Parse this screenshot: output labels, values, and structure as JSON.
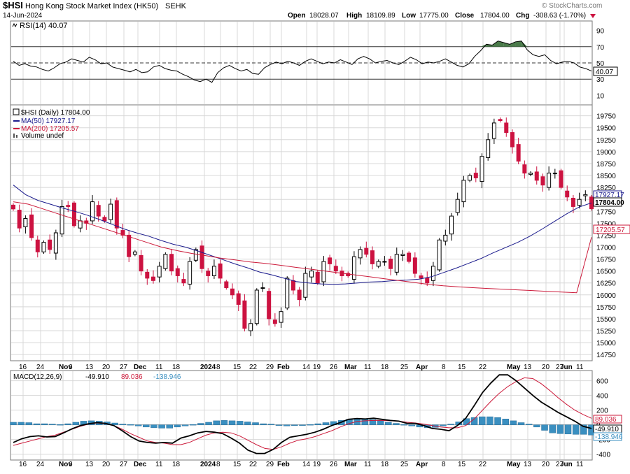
{
  "header": {
    "ticker": "$HSI",
    "name": "Hong Kong Stock Market Index (HK50)",
    "exchange": "SEHK",
    "date": "14-Jun-2024",
    "watermark": "© StockCharts.com",
    "quote": {
      "open_label": "Open",
      "open": "18028.07",
      "high_label": "High",
      "high": "18109.89",
      "low_label": "Low",
      "low": "17775.00",
      "close_label": "Close",
      "close": "17804.00",
      "chg_label": "Chg",
      "chg": "-308.63 (-1.70%)"
    }
  },
  "colors": {
    "up": "#000000",
    "down": "#cc1240",
    "ma50": "#1a1a8c",
    "ma200": "#cc1a3a",
    "rsi_fill": "#4a7a4a",
    "volume": "#3a8fc0",
    "grid": "#d8d8d8",
    "axis": "#000000"
  },
  "rsi_panel": {
    "label": "RSI(14) 40.07",
    "current_tag": "40.07",
    "ticks": [
      "90",
      "70",
      "50",
      "30",
      "10"
    ]
  },
  "price_panel": {
    "legend": [
      "$HSI (Daily) 17804.00",
      "MA(50) 17927.17",
      "MA(200) 17205.57",
      "Volume undef"
    ],
    "tags": {
      "ma50": "17927.17",
      "close": "17804.00",
      "ma200": "17205.57"
    },
    "ticks": [
      "19750",
      "19500",
      "19250",
      "19000",
      "18750",
      "18500",
      "18250",
      "18000",
      "17750",
      "17500",
      "17250",
      "17000",
      "16750",
      "16500",
      "16250",
      "16000",
      "15750",
      "15500",
      "15250",
      "15000",
      "14750"
    ]
  },
  "macd_panel": {
    "label_prefix": "MACD(12,26,9)",
    "macd_value": "-49.910",
    "signal_value": "89.036",
    "hist_value": "-138.946",
    "tags": {
      "signal": "89.036",
      "macd": "-49.910",
      "hist": "-138.946"
    },
    "ticks": [
      "600",
      "400",
      "200",
      "0",
      "-200",
      "-400"
    ]
  },
  "x_axis": {
    "labels": [
      {
        "text": "16",
        "bold": false
      },
      {
        "text": "24",
        "bold": false
      },
      {
        "text": "Nov",
        "bold": true
      },
      {
        "text": "6",
        "bold": false
      },
      {
        "text": "13",
        "bold": false
      },
      {
        "text": "20",
        "bold": false
      },
      {
        "text": "27",
        "bold": false
      },
      {
        "text": "Dec",
        "bold": true
      },
      {
        "text": "11",
        "bold": false
      },
      {
        "text": "18",
        "bold": false
      },
      {
        "text": "2024",
        "bold": true
      },
      {
        "text": "8",
        "bold": false
      },
      {
        "text": "15",
        "bold": false
      },
      {
        "text": "22",
        "bold": false
      },
      {
        "text": "29",
        "bold": false
      },
      {
        "text": "Feb",
        "bold": true
      },
      {
        "text": "14",
        "bold": false
      },
      {
        "text": "19",
        "bold": false
      },
      {
        "text": "26",
        "bold": false
      },
      {
        "text": "Mar",
        "bold": true
      },
      {
        "text": "11",
        "bold": false
      },
      {
        "text": "18",
        "bold": false
      },
      {
        "text": "25",
        "bold": false
      },
      {
        "text": "Apr",
        "bold": true
      },
      {
        "text": "8",
        "bold": false
      },
      {
        "text": "15",
        "bold": false
      },
      {
        "text": "22",
        "bold": false
      },
      {
        "text": "May",
        "bold": true
      },
      {
        "text": "13",
        "bold": false
      },
      {
        "text": "20",
        "bold": false
      },
      {
        "text": "27",
        "bold": false
      },
      {
        "text": "Jun",
        "bold": true
      },
      {
        "text": "11",
        "bold": false
      }
    ]
  },
  "chart_data": [
    {
      "type": "line",
      "title": "RSI(14) 40.07",
      "ylim": [
        0,
        100
      ],
      "grid": true,
      "reference_lines": [
        70,
        50,
        30
      ],
      "series": [
        {
          "name": "RSI(14)",
          "values": [
            52,
            47,
            49,
            46,
            45,
            42,
            40,
            44,
            49,
            51,
            55,
            53,
            51,
            57,
            54,
            49,
            50,
            45,
            43,
            41,
            39,
            42,
            38,
            39,
            45,
            47,
            43,
            41,
            40,
            36,
            33,
            29,
            27,
            30,
            26,
            38,
            44,
            47,
            43,
            40,
            42,
            37,
            36,
            44,
            48,
            51,
            49,
            52,
            50,
            47,
            52,
            55,
            52,
            49,
            51,
            50,
            54,
            51,
            48,
            55,
            58,
            55,
            50,
            52,
            53,
            50,
            48,
            52,
            57,
            54,
            49,
            51,
            50,
            52,
            55,
            51,
            47,
            45,
            49,
            58,
            65,
            73,
            72,
            77,
            75,
            73,
            76,
            77,
            66,
            60,
            58,
            60,
            53,
            49,
            51,
            52,
            50,
            45,
            43,
            40
          ]
        }
      ]
    },
    {
      "type": "line",
      "title": "$HSI (Daily) 17804.00",
      "ylim": [
        14650,
        19950
      ],
      "grid": true,
      "legend_position": "top-left",
      "series": [
        {
          "name": "$HSI (Daily) 17804.00",
          "role": "close",
          "values": [
            17800,
            17400,
            17600,
            17200,
            16900,
            17100,
            16950,
            17300,
            17850,
            17850,
            17450,
            17550,
            17500,
            17950,
            17650,
            17550,
            17900,
            17400,
            17250,
            16800,
            16900,
            16500,
            16350,
            16300,
            16600,
            16850,
            16500,
            16400,
            16250,
            16700,
            16950,
            16550,
            16400,
            16600,
            16350,
            16150,
            16000,
            15800,
            15300,
            15400,
            16100,
            16150,
            15500,
            15400,
            15650,
            16350,
            16100,
            15900,
            16450,
            16500,
            16250,
            16700,
            16650,
            16500,
            16400,
            16400,
            16800,
            16950,
            16850,
            16650,
            16700,
            16700,
            16550,
            16850,
            16850,
            16700,
            16450,
            16350,
            16250,
            16600,
            17150,
            17250,
            17650,
            18000,
            18400,
            18500,
            18450,
            18900,
            19250,
            19600,
            19650,
            19400,
            19100,
            18800,
            18550,
            18550,
            18400,
            18300,
            18550,
            18550,
            18250,
            18050,
            17850,
            18000,
            18100,
            17804
          ]
        },
        {
          "name": "MA(50) 17927.17",
          "values": [
            18300,
            18100,
            17980,
            17900,
            17820,
            17750,
            17670,
            17580,
            17480,
            17380,
            17300,
            17230,
            17140,
            17060,
            17000,
            16920,
            16830,
            16740,
            16650,
            16570,
            16480,
            16420,
            16350,
            16280,
            16250,
            16230,
            16220,
            16230,
            16250,
            16270,
            16280,
            16300,
            16310,
            16330,
            16380,
            16470,
            16560,
            16660,
            16760,
            16880,
            16990,
            17100,
            17230,
            17380,
            17540,
            17700,
            17840,
            17927
          ]
        },
        {
          "name": "MA(200) 17205.57",
          "values": [
            17950,
            17900,
            17800,
            17700,
            17600,
            17500,
            17400,
            17300,
            17200,
            17100,
            17000,
            16930,
            16870,
            16820,
            16770,
            16730,
            16690,
            16660,
            16620,
            16580,
            16540,
            16500,
            16460,
            16420,
            16380,
            16340,
            16300,
            16260,
            16220,
            16190,
            16170,
            16150,
            16135,
            16120,
            16105,
            16090,
            16075,
            16060,
            16045,
            17205.57
          ]
        }
      ]
    },
    {
      "type": "line",
      "title": "MACD(12,26,9) -49.910, 89.036, -138.946",
      "ylim": [
        -460,
        720
      ],
      "grid": true,
      "series": [
        {
          "name": "MACD",
          "values": [
            -240,
            -190,
            -160,
            -150,
            -165,
            -160,
            -110,
            -55,
            -10,
            15,
            30,
            20,
            -10,
            -80,
            -160,
            -220,
            -240,
            -250,
            -240,
            -250,
            -180,
            -150,
            -110,
            -90,
            -100,
            -120,
            -180,
            -250,
            -345,
            -390,
            -390,
            -335,
            -240,
            -170,
            -150,
            -130,
            -100,
            -60,
            -10,
            30,
            75,
            85,
            80,
            90,
            75,
            60,
            50,
            20,
            20,
            -10,
            -50,
            -60,
            -80,
            -10,
            90,
            260,
            440,
            570,
            680,
            680,
            600,
            500,
            400,
            310,
            240,
            170,
            110,
            50,
            -20,
            -49.91
          ]
        },
        {
          "name": "Signal",
          "values": [
            -280,
            -250,
            -220,
            -190,
            -160,
            -140,
            -100,
            -60,
            -20,
            10,
            25,
            15,
            -10,
            -60,
            -120,
            -170,
            -220,
            -240,
            -250,
            -270,
            -270,
            -240,
            -190,
            -140,
            -110,
            -100,
            -110,
            -150,
            -210,
            -270,
            -320,
            -335,
            -300,
            -250,
            -210,
            -190,
            -160,
            -120,
            -80,
            -30,
            15,
            45,
            55,
            60,
            60,
            55,
            50,
            35,
            25,
            10,
            -10,
            -30,
            -40,
            -40,
            -10,
            80,
            200,
            320,
            430,
            520,
            590,
            640,
            630,
            560,
            470,
            370,
            280,
            200,
            140,
            89.036
          ]
        },
        {
          "name": "Histogram",
          "values": [
            35,
            35,
            30,
            15,
            15,
            10,
            5,
            15,
            35,
            50,
            55,
            50,
            40,
            25,
            10,
            5,
            -15,
            -30,
            -40,
            -45,
            -45,
            -30,
            -15,
            5,
            20,
            35,
            55,
            60,
            55,
            50,
            40,
            30,
            15,
            10,
            -5,
            -15,
            -10,
            -5,
            5,
            15,
            30,
            45,
            60,
            75,
            85,
            80,
            70,
            55,
            35,
            20,
            5,
            -15,
            -30,
            -40,
            -35,
            -15,
            10,
            40,
            85,
            100,
            110,
            110,
            100,
            80,
            55,
            30,
            10,
            -30,
            -75,
            -110,
            -120,
            -125,
            -130,
            -130,
            -138.946
          ]
        }
      ]
    }
  ]
}
